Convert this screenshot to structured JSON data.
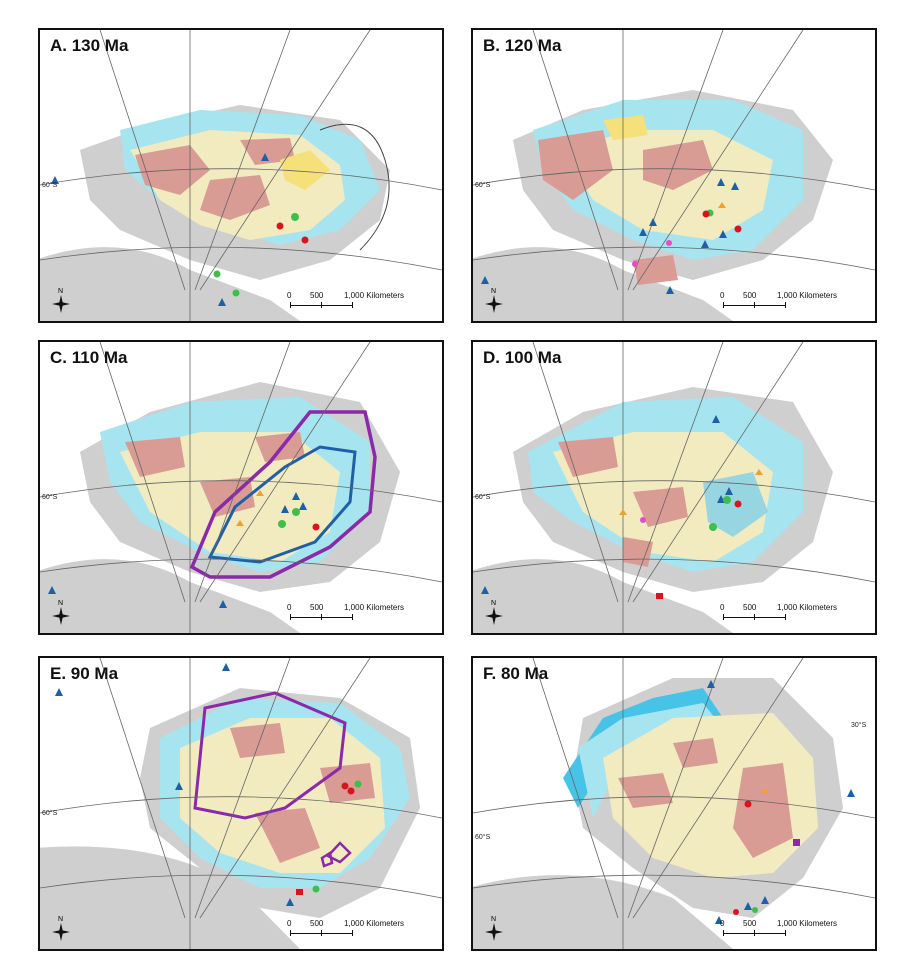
{
  "panels": [
    {
      "title": "A. 130 Ma",
      "lat_label": "60°S"
    },
    {
      "title": "B. 120 Ma",
      "lat_label": "60°S"
    },
    {
      "title": "C. 110 Ma",
      "lat_label": "60°S"
    },
    {
      "title": "D. 100 Ma",
      "lat_label": "60°S"
    },
    {
      "title": "E. 90 Ma",
      "lat_label": "60°S"
    },
    {
      "title": "F. 80 Ma",
      "lat_label": "60°S",
      "lat_label_2": "30°S"
    }
  ],
  "scalebar": {
    "zero": "0",
    "mid": "500",
    "end": "1,000 Kilometers"
  },
  "north_label": "N",
  "colors": {
    "shallow_marine": "#a6e4f0",
    "deep_marine": "#46c3e6",
    "fluvial_lacustrine": "#f2ebc0",
    "upland": "#d89c95",
    "coastal": "#f5e07a",
    "land_grey": "#cfcfcf",
    "outline_purple": "#8a2aa8",
    "outline_blue": "#1f5fa6",
    "triangle": "#1f5fa6",
    "green_marker": "#3cc04a",
    "red_marker": "#d8141e",
    "orange_marker": "#f0a030",
    "pink_marker": "#e24ec6",
    "purple_marker": "#8a2aa8"
  }
}
